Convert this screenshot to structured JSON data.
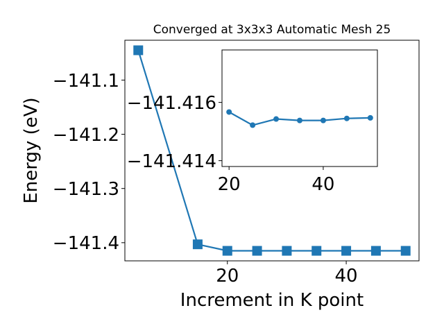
{
  "colors": {
    "series": "#1f77b4"
  },
  "chart_data": [
    {
      "type": "line",
      "title": "Converged at 3x3x3 Automatic Mesh 25",
      "xlabel": "Increment in K point",
      "ylabel": "Energy (eV)",
      "x": [
        5,
        15,
        20,
        25,
        30,
        35,
        40,
        45,
        50
      ],
      "y": [
        -141.045,
        -141.403,
        -141.415,
        -141.415,
        -141.415,
        -141.415,
        -141.415,
        -141.415,
        -141.415
      ],
      "xlim": [
        2.75,
        52.25
      ],
      "ylim": [
        -141.4335,
        -141.0265
      ],
      "xticks": [
        20,
        40
      ],
      "xtick_labels": [
        "20",
        "40"
      ],
      "yticks": [
        -141.4,
        -141.3,
        -141.2,
        -141.1
      ],
      "ytick_labels": [
        "−141.4",
        "−141.3",
        "−141.2",
        "−141.1"
      ],
      "marker": "square",
      "grid": false
    },
    {
      "type": "line",
      "title": "",
      "xlabel": "",
      "ylabel": "",
      "x": [
        20,
        25,
        30,
        35,
        40,
        45,
        50
      ],
      "y": [
        -141.41567,
        -141.41522,
        -141.41543,
        -141.41538,
        -141.41538,
        -141.41545,
        -141.41547
      ],
      "xlim": [
        18.5,
        51.5
      ],
      "ylim": [
        -141.4138,
        -141.4178
      ],
      "xticks": [
        20,
        40
      ],
      "xtick_labels": [
        "20",
        "40"
      ],
      "yticks": [
        -141.414,
        -141.416
      ],
      "ytick_labels": [
        "−141.414",
        "−141.416"
      ],
      "marker": "circle",
      "grid": false
    }
  ]
}
